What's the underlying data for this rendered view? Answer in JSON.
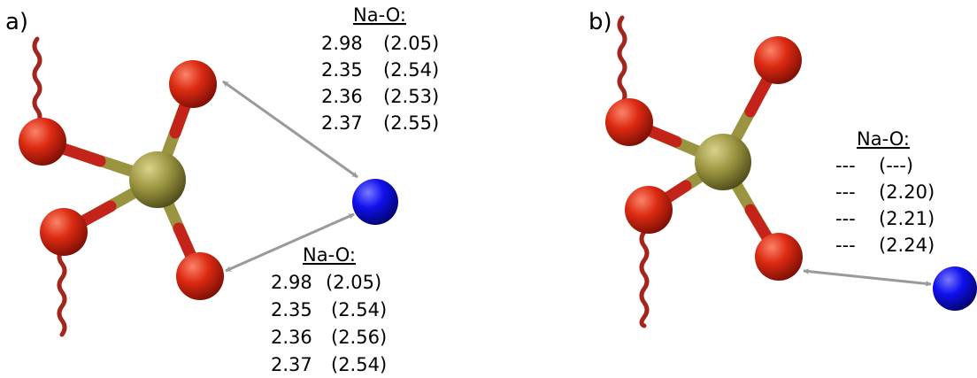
{
  "panels": [
    {
      "label": "a)",
      "annotations": [
        {
          "header": "Na-O:",
          "rows": [
            {
              "dist": "2.98",
              "paren": "(2.05)"
            },
            {
              "dist": "2.35",
              "paren": "(2.54)"
            },
            {
              "dist": "2.36",
              "paren": "(2.53)"
            },
            {
              "dist": "2.37",
              "paren": "(2.55)"
            }
          ]
        },
        {
          "header": "Na-O:",
          "rows": [
            {
              "dist": "2.98",
              "paren": "(2.05)"
            },
            {
              "dist": "2.35",
              "paren": "(2.54)"
            },
            {
              "dist": "2.36",
              "paren": "(2.56)"
            },
            {
              "dist": "2.37",
              "paren": "(2.54)"
            }
          ]
        }
      ]
    },
    {
      "label": "b)",
      "annotations": [
        {
          "header": "Na-O:",
          "rows": [
            {
              "dist": "---",
              "paren": "(---)"
            },
            {
              "dist": "---",
              "paren": "(2.20)"
            },
            {
              "dist": "---",
              "paren": "(2.21)"
            },
            {
              "dist": "---",
              "paren": "(2.24)"
            }
          ]
        }
      ]
    }
  ],
  "colors": {
    "oxygen": "#dd2a12",
    "sodium": "#1010ee",
    "sulfur": "#9a9440",
    "chain": "#a3261c",
    "arrow": "#9a9a9a"
  }
}
